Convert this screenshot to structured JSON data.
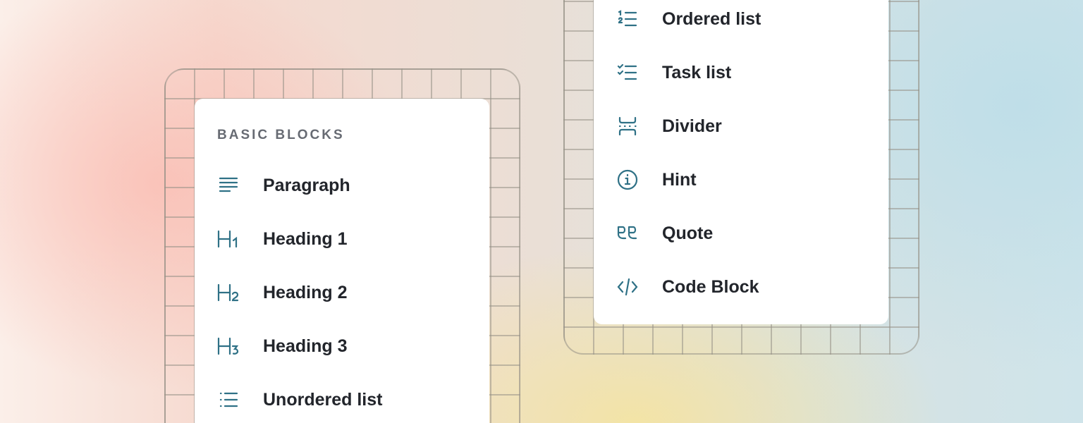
{
  "left_panel": {
    "header": "BASIC BLOCKS",
    "items": [
      {
        "label": "Paragraph",
        "icon": "paragraph-icon"
      },
      {
        "label": "Heading 1",
        "icon": "heading-1-icon"
      },
      {
        "label": "Heading 2",
        "icon": "heading-2-icon"
      },
      {
        "label": "Heading 3",
        "icon": "heading-3-icon"
      },
      {
        "label": "Unordered list",
        "icon": "unordered-list-icon"
      }
    ]
  },
  "right_panel": {
    "items": [
      {
        "label": "Ordered list",
        "icon": "ordered-list-icon"
      },
      {
        "label": "Task list",
        "icon": "task-list-icon"
      },
      {
        "label": "Divider",
        "icon": "divider-icon"
      },
      {
        "label": "Hint",
        "icon": "info-icon"
      },
      {
        "label": "Quote",
        "icon": "quote-icon"
      },
      {
        "label": "Code Block",
        "icon": "code-icon"
      }
    ]
  },
  "colors": {
    "icon": "#2f7186",
    "text": "#22252b",
    "header": "#676b73"
  }
}
